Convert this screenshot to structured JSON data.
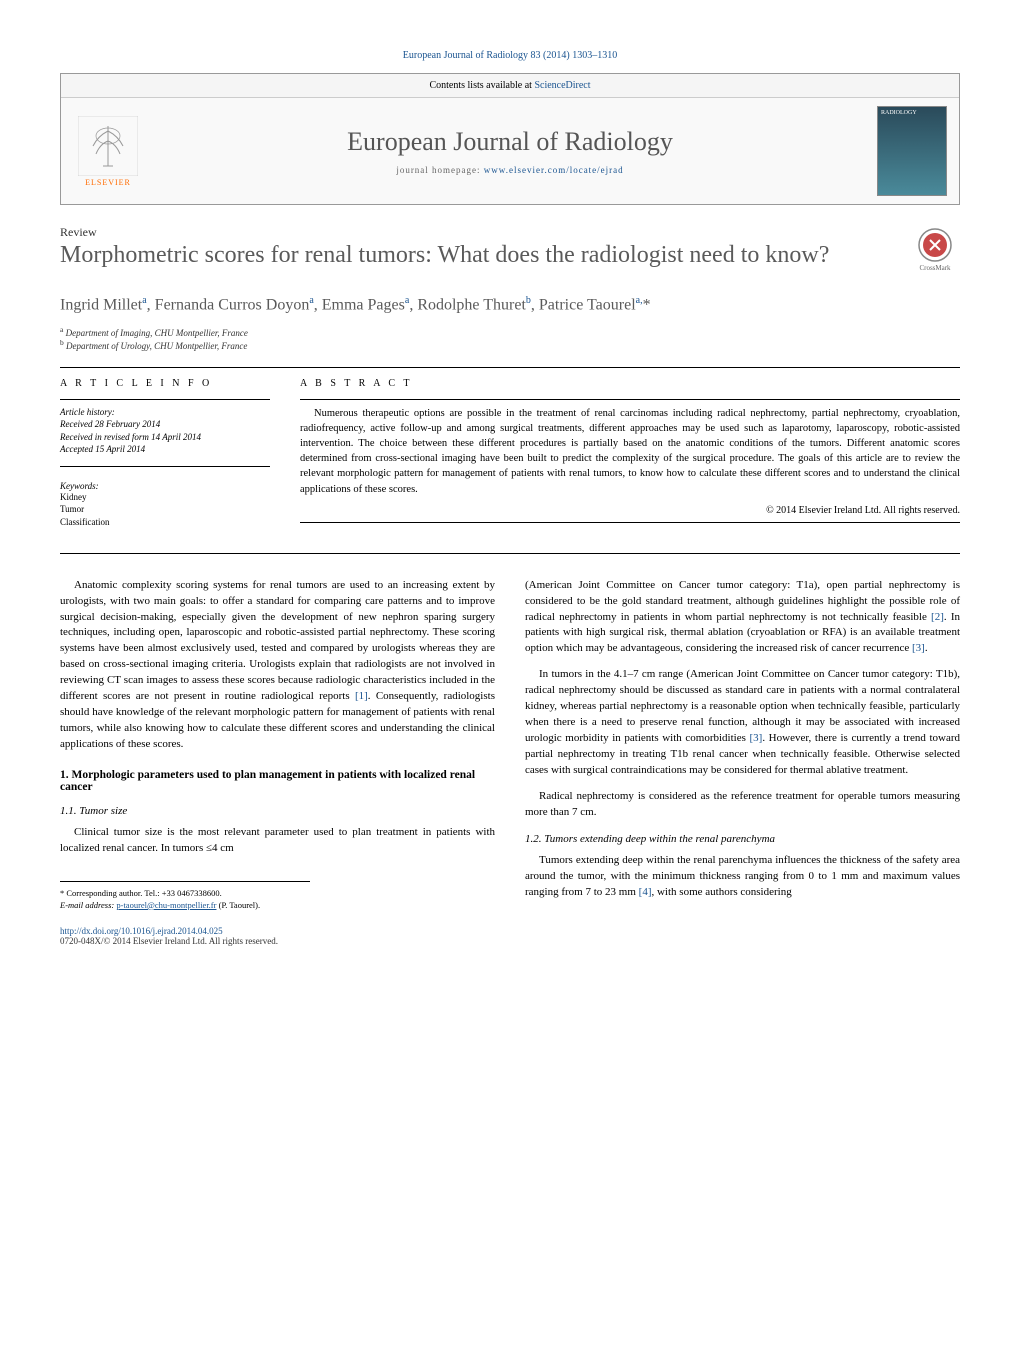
{
  "header": {
    "citation": "European Journal of Radiology 83 (2014) 1303–1310",
    "contents_line_prefix": "Contents lists available at ",
    "contents_link": "ScienceDirect",
    "journal_name": "European Journal of Radiology",
    "homepage_prefix": "journal homepage: ",
    "homepage_url": "www.elsevier.com/locate/ejrad",
    "publisher_label": "ELSEVIER",
    "cover_label": "RADIOLOGY"
  },
  "article": {
    "type": "Review",
    "title": "Morphometric scores for renal tumors: What does the radiologist need to know?",
    "authors_html": "Ingrid Millet<sup>a</sup>, Fernanda Curros Doyon<sup>a</sup>, Emma Pages<sup>a</sup>, Rodolphe Thuret<sup>b</sup>, Patrice Taourel<sup>a,</sup>*",
    "affiliations": [
      {
        "sup": "a",
        "text": "Department of Imaging, CHU Montpellier, France"
      },
      {
        "sup": "b",
        "text": "Department of Urology, CHU Montpellier, France"
      }
    ]
  },
  "info": {
    "section_label": "a r t i c l e   i n f o",
    "history_label": "Article history:",
    "received": "Received 28 February 2014",
    "revised": "Received in revised form 14 April 2014",
    "accepted": "Accepted 15 April 2014",
    "keywords_label": "Keywords:",
    "keywords": [
      "Kidney",
      "Tumor",
      "Classification"
    ]
  },
  "abstract": {
    "section_label": "a b s t r a c t",
    "text": "Numerous therapeutic options are possible in the treatment of renal carcinomas including radical nephrectomy, partial nephrectomy, cryoablation, radiofrequency, active follow-up and among surgical treatments, different approaches may be used such as laparotomy, laparoscopy, robotic-assisted intervention. The choice between these different procedures is partially based on the anatomic conditions of the tumors. Different anatomic scores determined from cross-sectional imaging have been built to predict the complexity of the surgical procedure. The goals of this article are to review the relevant morphologic pattern for management of patients with renal tumors, to know how to calculate these different scores and to understand the clinical applications of these scores.",
    "copyright": "© 2014 Elsevier Ireland Ltd. All rights reserved."
  },
  "body": {
    "left": {
      "intro_para": "Anatomic complexity scoring systems for renal tumors are used to an increasing extent by urologists, with two main goals: to offer a standard for comparing care patterns and to improve surgical decision-making, especially given the development of new nephron sparing surgery techniques, including open, laparoscopic and robotic-assisted partial nephrectomy. These scoring systems have been almost exclusively used, tested and compared by urologists whereas they are based on cross-sectional imaging criteria. Urologists explain that radiologists are not involved in reviewing CT scan images to assess these scores because radiologic characteristics included in the different scores are not present in routine radiological reports [1]. Consequently, radiologists should have knowledge of the relevant morphologic pattern for management of patients with renal tumors, while also knowing how to calculate these different scores and understanding the clinical applications of these scores.",
      "section1_head": "1. Morphologic parameters used to plan management in patients with localized renal cancer",
      "section11_head": "1.1. Tumor size",
      "section11_para": "Clinical tumor size is the most relevant parameter used to plan treatment in patients with localized renal cancer. In tumors ≤4 cm"
    },
    "right": {
      "para1": "(American Joint Committee on Cancer tumor category: T1a), open partial nephrectomy is considered to be the gold standard treatment, although guidelines highlight the possible role of radical nephrectomy in patients in whom partial nephrectomy is not technically feasible [2]. In patients with high surgical risk, thermal ablation (cryoablation or RFA) is an available treatment option which may be advantageous, considering the increased risk of cancer recurrence [3].",
      "para2": "In tumors in the 4.1–7 cm range (American Joint Committee on Cancer tumor category: T1b), radical nephrectomy should be discussed as standard care in patients with a normal contralateral kidney, whereas partial nephrectomy is a reasonable option when technically feasible, particularly when there is a need to preserve renal function, although it may be associated with increased urologic morbidity in patients with comorbidities [3]. However, there is currently a trend toward partial nephrectomy in treating T1b renal cancer when technically feasible. Otherwise selected cases with surgical contraindications may be considered for thermal ablative treatment.",
      "para3": "Radical nephrectomy is considered as the reference treatment for operable tumors measuring more than 7 cm.",
      "section12_head": "1.2. Tumors extending deep within the renal parenchyma",
      "section12_para": "Tumors extending deep within the renal parenchyma influences the thickness of the safety area around the tumor, with the minimum thickness ranging from 0 to 1 mm and maximum values ranging from 7 to 23 mm [4], with some authors considering"
    }
  },
  "footnotes": {
    "corr": "* Corresponding author. Tel.: +33 0467338600.",
    "email_label": "E-mail address: ",
    "email": "p-taourel@chu-montpellier.fr",
    "email_suffix": " (P. Taourel)."
  },
  "footer": {
    "doi": "http://dx.doi.org/10.1016/j.ejrad.2014.04.025",
    "copyright": "0720-048X/© 2014 Elsevier Ireland Ltd. All rights reserved."
  },
  "crossmark_label": "CrossMark"
}
